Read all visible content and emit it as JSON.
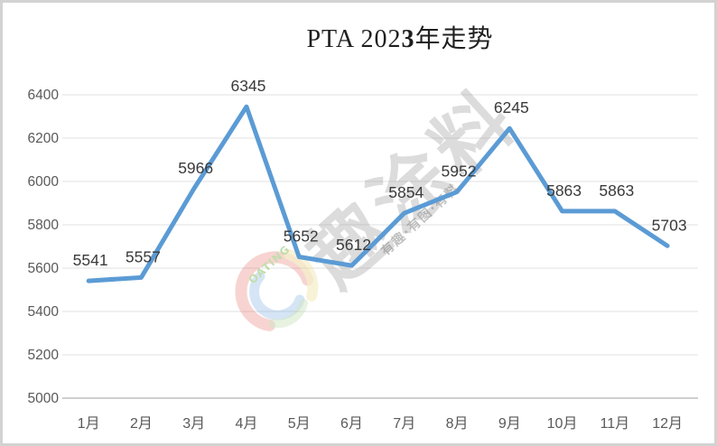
{
  "title": {
    "part1": "PTA 202",
    "part_bold": "3",
    "part2": "年走势"
  },
  "chart_data": {
    "type": "line",
    "title": "PTA 2023年走势",
    "categories": [
      "1月",
      "2月",
      "3月",
      "4月",
      "5月",
      "6月",
      "7月",
      "8月",
      "9月",
      "10月",
      "11月",
      "12月"
    ],
    "series": [
      {
        "name": "PTA",
        "values": [
          5541,
          5557,
          5966,
          6345,
          5652,
          5612,
          5854,
          5952,
          6245,
          5863,
          5863,
          5703
        ]
      }
    ],
    "xlabel": "",
    "ylabel": "",
    "ylim": [
      5000,
      6400
    ],
    "ytick_step": 200,
    "yticks": [
      5000,
      5200,
      5400,
      5600,
      5800,
      6000,
      6200,
      6400
    ],
    "grid": true,
    "legend": "none",
    "data_labels": true,
    "colors": {
      "line": "#5B9BD5",
      "data_label": "#3a3a3a",
      "axis_text": "#595959",
      "gridline": "#e2e2e2",
      "axis_line": "#bfbfbf"
    }
  },
  "watermark": {
    "big_text": "趣涂料",
    "small_text": "有趣·有图·有料",
    "logo_text": "OATING",
    "logo_colors": {
      "red": "#dd5146",
      "blue": "#4a90d9",
      "yellow": "#e8d98a",
      "green": "#9ccb86"
    }
  }
}
